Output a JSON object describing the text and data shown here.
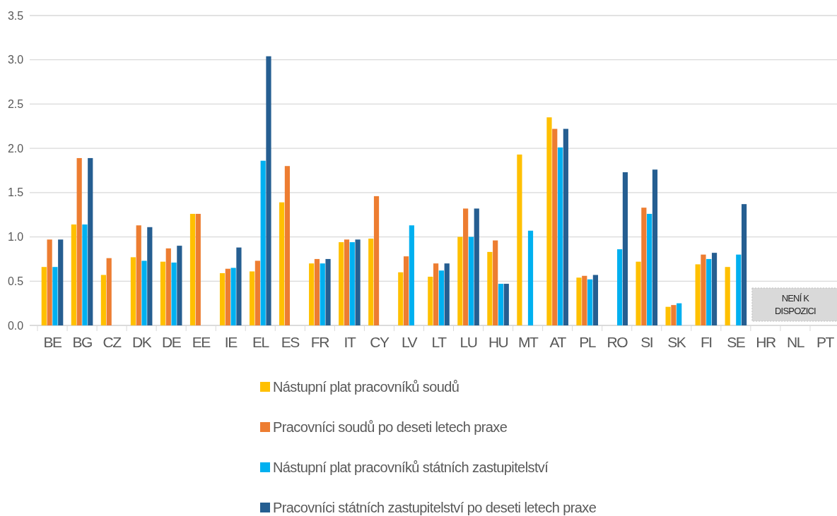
{
  "chart_data": {
    "type": "bar",
    "categories": [
      "BE",
      "BG",
      "CZ",
      "DK",
      "DE",
      "EE",
      "IE",
      "EL",
      "ES",
      "FR",
      "IT",
      "CY",
      "LV",
      "LT",
      "LU",
      "HU",
      "MT",
      "AT",
      "PL",
      "RO",
      "SI",
      "SK",
      "FI",
      "SE",
      "HR",
      "NL",
      "PT"
    ],
    "series": [
      {
        "name": "Nástupní plat pracovníků soudů",
        "color": "#ffc000",
        "values": [
          0.66,
          1.14,
          0.57,
          0.77,
          0.72,
          1.26,
          0.59,
          0.61,
          1.39,
          0.7,
          0.94,
          0.98,
          0.6,
          0.55,
          1.0,
          0.83,
          1.93,
          2.35,
          0.54,
          null,
          0.72,
          0.21,
          0.69,
          0.66,
          null,
          null,
          null
        ]
      },
      {
        "name": "Pracovníci soudů po deseti letech praxe",
        "color": "#ed7d31",
        "values": [
          0.97,
          1.89,
          0.76,
          1.13,
          0.87,
          1.26,
          0.64,
          0.73,
          1.8,
          0.75,
          0.97,
          1.46,
          0.78,
          0.7,
          1.32,
          0.96,
          null,
          2.22,
          0.56,
          null,
          1.33,
          0.23,
          0.8,
          null,
          null,
          null,
          null
        ]
      },
      {
        "name": "Nástupní plat pracovníků státních zastupitelství",
        "color": "#00b0f0",
        "values": [
          0.66,
          1.14,
          null,
          0.73,
          0.71,
          null,
          0.65,
          1.86,
          null,
          0.7,
          0.94,
          null,
          1.13,
          0.62,
          1.0,
          0.47,
          1.07,
          2.01,
          0.52,
          0.86,
          1.26,
          0.25,
          0.75,
          0.8,
          null,
          null,
          null
        ]
      },
      {
        "name": "Pracovníci státních zastupitelství po deseti letech praxe",
        "color": "#255e91",
        "values": [
          0.97,
          1.89,
          null,
          1.11,
          0.9,
          null,
          0.88,
          3.04,
          null,
          0.75,
          0.97,
          null,
          null,
          0.7,
          1.32,
          0.47,
          null,
          2.22,
          0.57,
          1.73,
          1.76,
          null,
          0.82,
          1.37,
          null,
          null,
          null
        ]
      }
    ],
    "ylim": [
      0,
      3.5
    ],
    "yticks": [
      {
        "value": 0,
        "label": "0.0"
      },
      {
        "value": 0.5,
        "label": "0.5"
      },
      {
        "value": 1,
        "label": "1.0"
      },
      {
        "value": 1.5,
        "label": "1.5"
      },
      {
        "value": 2,
        "label": "2.0"
      },
      {
        "value": 2.5,
        "label": "2.5"
      },
      {
        "value": 3,
        "label": "3.0"
      },
      {
        "value": 3.5,
        "label": "3.5"
      }
    ],
    "grid": "y",
    "legend": "bottom",
    "annotations": [
      "NENÍ K DISPOZICI"
    ]
  }
}
